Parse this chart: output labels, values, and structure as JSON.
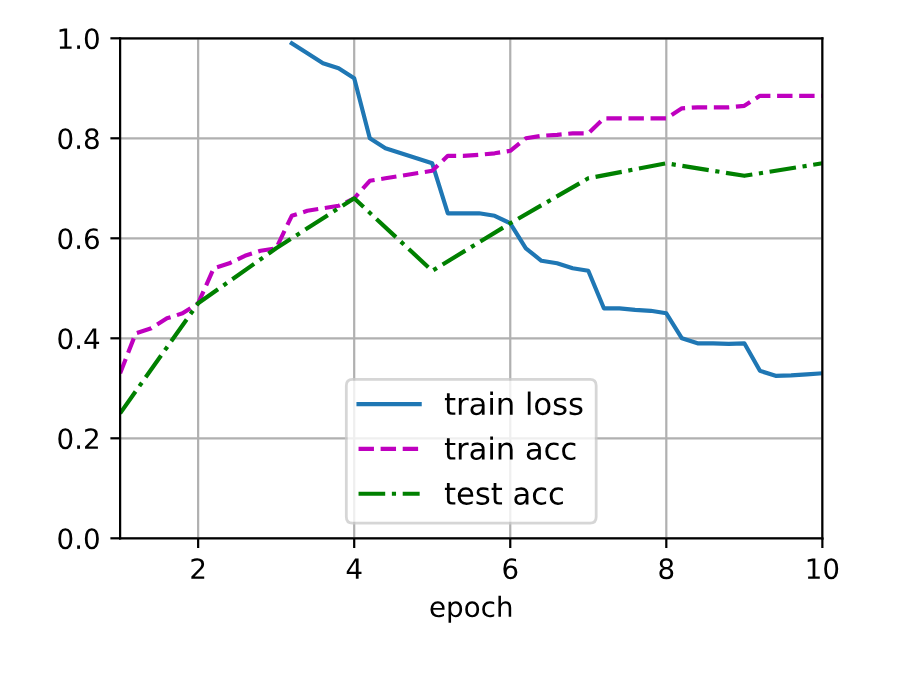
{
  "chart_data": {
    "type": "line",
    "xlabel": "epoch",
    "xlim": [
      1,
      10
    ],
    "ylim": [
      0,
      1
    ],
    "xticks": [
      2,
      4,
      6,
      8,
      10
    ],
    "yticks": [
      {
        "value": 0,
        "label": "0.0"
      },
      {
        "value": 0.2,
        "label": "0.2"
      },
      {
        "value": 0.4,
        "label": "0.4"
      },
      {
        "value": 0.6,
        "label": "0.6"
      },
      {
        "value": 0.8,
        "label": "0.8"
      },
      {
        "value": 1,
        "label": "1.0"
      }
    ],
    "grid": true,
    "legend": "bottom",
    "series": [
      {
        "name": "train loss",
        "color": "#1f77b4",
        "line_style": "solid",
        "x": [
          3.2,
          3.4,
          3.6,
          3.8,
          4.0,
          4.2,
          4.4,
          4.6,
          4.8,
          5.0,
          5.2,
          5.4,
          5.6,
          5.8,
          6.0,
          6.2,
          6.4,
          6.6,
          6.8,
          7.0,
          7.2,
          7.4,
          7.6,
          7.8,
          8.0,
          8.2,
          8.4,
          8.6,
          8.8,
          9.0,
          9.2,
          9.4,
          9.6,
          9.8,
          10.0
        ],
        "values": [
          0.99,
          0.97,
          0.95,
          0.94,
          0.92,
          0.8,
          0.78,
          0.77,
          0.76,
          0.75,
          0.65,
          0.65,
          0.65,
          0.645,
          0.63,
          0.58,
          0.555,
          0.55,
          0.54,
          0.535,
          0.46,
          0.46,
          0.457,
          0.455,
          0.45,
          0.4,
          0.39,
          0.39,
          0.389,
          0.39,
          0.335,
          0.325,
          0.326,
          0.328,
          0.33
        ]
      },
      {
        "name": "train acc",
        "color": "#bf00bf",
        "line_style": "dashed",
        "x": [
          1.0,
          1.2,
          1.4,
          1.6,
          1.8,
          2.0,
          2.2,
          2.4,
          2.6,
          2.8,
          3.0,
          3.2,
          3.4,
          3.6,
          3.8,
          4.0,
          4.2,
          4.4,
          4.6,
          4.8,
          5.0,
          5.2,
          5.4,
          5.6,
          5.8,
          6.0,
          6.2,
          6.4,
          6.6,
          6.8,
          7.0,
          7.2,
          7.4,
          7.6,
          7.8,
          8.0,
          8.2,
          8.4,
          8.6,
          8.8,
          9.0,
          9.2,
          9.4,
          9.6,
          9.8,
          10.0
        ],
        "values": [
          0.33,
          0.41,
          0.42,
          0.44,
          0.45,
          0.47,
          0.54,
          0.55,
          0.565,
          0.575,
          0.58,
          0.645,
          0.655,
          0.66,
          0.665,
          0.68,
          0.715,
          0.72,
          0.725,
          0.73,
          0.735,
          0.765,
          0.765,
          0.767,
          0.77,
          0.775,
          0.8,
          0.805,
          0.807,
          0.81,
          0.81,
          0.84,
          0.84,
          0.84,
          0.84,
          0.84,
          0.86,
          0.862,
          0.862,
          0.862,
          0.865,
          0.885,
          0.885,
          0.885,
          0.885,
          0.885
        ]
      },
      {
        "name": "test acc",
        "color": "#008000",
        "line_style": "dashdot",
        "x": [
          1,
          2,
          3,
          4,
          5,
          6,
          7,
          8,
          9,
          10
        ],
        "values": [
          0.25,
          0.47,
          0.58,
          0.68,
          0.535,
          0.63,
          0.72,
          0.75,
          0.725,
          0.75
        ]
      }
    ]
  }
}
